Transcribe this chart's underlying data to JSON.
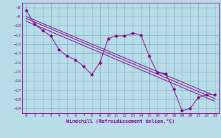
{
  "title": "",
  "xlabel": "Windchill (Refroidissement éolien,°C)",
  "background_color": "#b8dde8",
  "grid_color": "#88bbcc",
  "line_color": "#880088",
  "xlim": [
    -0.5,
    23.5
  ],
  "ylim": [
    -19.5,
    -7.5
  ],
  "xticks": [
    0,
    1,
    2,
    3,
    4,
    5,
    6,
    7,
    8,
    9,
    10,
    11,
    12,
    13,
    14,
    15,
    16,
    17,
    18,
    19,
    20,
    21,
    22,
    23
  ],
  "yticks": [
    -8,
    -9,
    -10,
    -11,
    -12,
    -13,
    -14,
    -15,
    -16,
    -17,
    -18,
    -19
  ],
  "data_line": {
    "x": [
      0,
      1,
      2,
      3,
      4,
      5,
      6,
      7,
      8,
      9,
      10,
      11,
      12,
      13,
      14,
      15,
      16,
      17,
      18,
      19,
      20,
      21,
      22,
      23
    ],
    "y": [
      -8.3,
      -9.8,
      -10.5,
      -11.1,
      -12.6,
      -13.3,
      -13.7,
      -14.4,
      -15.3,
      -14.0,
      -11.4,
      -11.1,
      -11.1,
      -10.8,
      -11.0,
      -13.3,
      -15.1,
      -15.2,
      -16.9,
      -19.2,
      -19.0,
      -17.8,
      -17.5,
      -17.5
    ]
  },
  "regression_lines": [
    {
      "x": [
        0,
        23
      ],
      "y": [
        -9.0,
        -17.6
      ]
    },
    {
      "x": [
        0,
        23
      ],
      "y": [
        -9.2,
        -17.9
      ]
    },
    {
      "x": [
        0,
        23
      ],
      "y": [
        -9.5,
        -18.2
      ]
    }
  ]
}
